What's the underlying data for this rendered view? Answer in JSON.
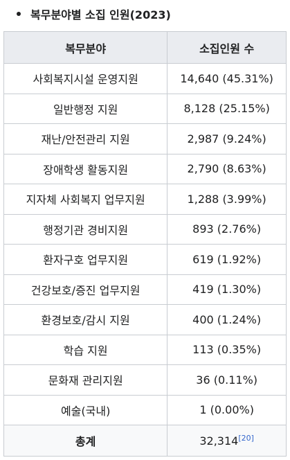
{
  "heading": "복무분야별 소집 인원(2023)",
  "table": {
    "headers": [
      "복무분야",
      "소집인원 수"
    ],
    "rows": [
      {
        "field": "사회복지시설 운영지원",
        "count": "14,640 (45.31%)"
      },
      {
        "field": "일반행정 지원",
        "count": "8,128 (25.15%)"
      },
      {
        "field": "재난/안전관리 지원",
        "count": "2,987 (9.24%)"
      },
      {
        "field": "장애학생 활동지원",
        "count": "2,790 (8.63%)"
      },
      {
        "field": "지자체 사회복지 업무지원",
        "count": "1,288 (3.99%)"
      },
      {
        "field": "행정기관 경비지원",
        "count": "893 (2.76%)"
      },
      {
        "field": "환자구호 업무지원",
        "count": "619 (1.92%)"
      },
      {
        "field": "건강보호/증진 업무지원",
        "count": "419 (1.30%)"
      },
      {
        "field": "환경보호/감시 지원",
        "count": "400 (1.24%)"
      },
      {
        "field": "학습 지원",
        "count": "113 (0.35%)"
      },
      {
        "field": "문화재 관리지원",
        "count": "36 (0.11%)"
      },
      {
        "field": "예술(국내)",
        "count": "1 (0.00%)"
      }
    ],
    "total": {
      "label": "총계",
      "count": "32,314",
      "reference": "[20]"
    }
  }
}
